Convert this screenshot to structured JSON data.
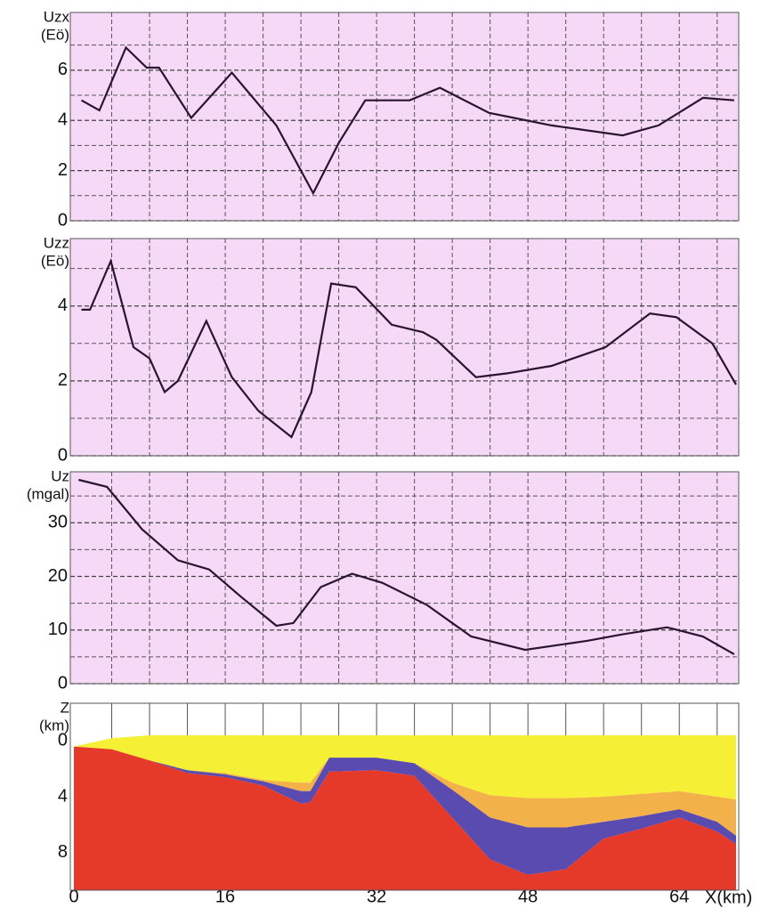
{
  "chart_data": [
    {
      "type": "line",
      "y_label": [
        "Uzx",
        "(Eö)"
      ],
      "background": "#f6d9f6",
      "xlim": [
        0,
        70
      ],
      "ylim": [
        0,
        8.3
      ],
      "yticks": [
        0,
        2,
        4,
        6
      ],
      "y_minor_ticks": [
        1,
        3,
        5,
        7
      ],
      "x_grid_ticks": [
        4,
        8,
        12,
        16,
        20,
        24,
        28,
        32,
        36,
        40,
        44,
        48,
        52,
        56,
        60,
        64,
        68
      ],
      "x": [
        0.8,
        2.7,
        5.5,
        7.7,
        9,
        12.4,
        16.7,
        21.4,
        25.3,
        28,
        30.8,
        35.5,
        38.7,
        43.9,
        50.5,
        58,
        61.8,
        66.5,
        69.8
      ],
      "series": [
        {
          "color": "#2a1530",
          "values": [
            4.8,
            4.4,
            6.9,
            6.1,
            6.1,
            4.1,
            5.9,
            3.8,
            1.1,
            3.1,
            4.8,
            4.8,
            5.3,
            4.3,
            3.8,
            3.4,
            3.8,
            4.9,
            4.8
          ]
        }
      ]
    },
    {
      "type": "line",
      "y_label": [
        "Uzz",
        "(Eö)"
      ],
      "background": "#f6d9f6",
      "xlim": [
        0,
        70
      ],
      "ylim": [
        0,
        5.8
      ],
      "yticks": [
        0,
        2,
        4
      ],
      "y_minor_ticks": [
        1,
        3,
        5
      ],
      "x_grid_ticks": [
        4,
        8,
        12,
        16,
        20,
        24,
        28,
        32,
        36,
        40,
        44,
        48,
        52,
        56,
        60,
        64,
        68
      ],
      "x": [
        0.8,
        1.7,
        3.9,
        6.3,
        8,
        9.6,
        11,
        14,
        16.7,
        19.5,
        23,
        25.1,
        27.2,
        29.8,
        33.6,
        36.9,
        38.3,
        42.5,
        45.8,
        50.5,
        56.2,
        60.9,
        63.7,
        67.5,
        70
      ],
      "series": [
        {
          "color": "#2a1530",
          "values": [
            3.9,
            3.9,
            5.2,
            2.9,
            2.6,
            1.7,
            2.0,
            3.6,
            2.1,
            1.2,
            0.5,
            1.7,
            4.6,
            4.5,
            3.5,
            3.3,
            3.1,
            2.1,
            2.2,
            2.4,
            2.9,
            3.8,
            3.7,
            3.0,
            1.9
          ]
        }
      ]
    },
    {
      "type": "line",
      "y_label": [
        "Uz",
        "(mgal)"
      ],
      "background": "#f6d9f6",
      "xlim": [
        0,
        70
      ],
      "ylim": [
        0,
        39.5
      ],
      "yticks": [
        0,
        10,
        20,
        30
      ],
      "y_minor_ticks": [
        5,
        15,
        25,
        35
      ],
      "x_grid_ticks": [
        4,
        8,
        12,
        16,
        20,
        24,
        28,
        32,
        36,
        40,
        44,
        48,
        52,
        56,
        60,
        64,
        68
      ],
      "x": [
        0.5,
        3.5,
        7.2,
        11,
        14.3,
        17.6,
        21.4,
        23.2,
        26.1,
        29.4,
        32.6,
        37.3,
        42,
        47.7,
        54.3,
        58,
        62.7,
        66.5,
        69.8
      ],
      "series": [
        {
          "color": "#2a1530",
          "values": [
            38,
            36.7,
            28.8,
            23,
            21.3,
            16.3,
            10.8,
            11.3,
            18,
            20.5,
            18.8,
            14.7,
            8.8,
            6.3,
            8,
            9.2,
            10.5,
            8.8,
            5.5
          ]
        }
      ]
    },
    {
      "type": "section",
      "y_label": [
        "Z",
        "(km)"
      ],
      "x_label": "X(km)",
      "inverted": true,
      "xlim": [
        0,
        70
      ],
      "ylim": [
        -2.7,
        10.7
      ],
      "yticks": [
        0,
        4,
        8
      ],
      "xticks": [
        0,
        16,
        32,
        48,
        64
      ],
      "x_grid_ticks": [
        4,
        8,
        12,
        16,
        20,
        24,
        28,
        32,
        36,
        40,
        44,
        48,
        52,
        56,
        60,
        64,
        68
      ],
      "x": [
        0,
        4,
        8,
        12,
        16,
        20,
        24,
        25,
        27,
        32,
        36,
        40,
        44,
        48,
        52,
        56,
        60,
        64,
        68,
        70
      ],
      "series": [
        {
          "color": "#f5ef35",
          "values": [
            0.4,
            -0.2,
            -0.4,
            -0.4,
            -0.4,
            -0.4,
            -0.4,
            -0.4,
            -0.4,
            -0.4,
            -0.4,
            -0.4,
            -0.4,
            -0.4,
            -0.4,
            -0.4,
            -0.4,
            -0.4,
            -0.4,
            -0.4
          ]
        },
        {
          "color": "#f3b14a",
          "values": [
            0.4,
            0.6,
            1.4,
            2.1,
            2.3,
            2.8,
            3.0,
            3.0,
            1.2,
            1.2,
            1.6,
            3.0,
            3.9,
            4.1,
            4.1,
            4.0,
            3.8,
            3.6,
            4.0,
            4.2
          ]
        },
        {
          "color": "#5a4bb0",
          "values": [
            0.4,
            0.6,
            1.4,
            2.1,
            2.4,
            2.9,
            3.6,
            3.6,
            1.2,
            1.2,
            1.6,
            3.5,
            5.5,
            6.2,
            6.2,
            5.8,
            5.4,
            4.9,
            5.8,
            6.8
          ]
        },
        {
          "color": "#e5392a",
          "values": [
            0.4,
            0.6,
            1.4,
            2.3,
            2.6,
            3.2,
            4.5,
            4.4,
            2.2,
            2.1,
            2.5,
            5.5,
            8.5,
            9.6,
            9.2,
            7.0,
            6.3,
            5.5,
            6.5,
            7.4
          ]
        }
      ]
    }
  ]
}
